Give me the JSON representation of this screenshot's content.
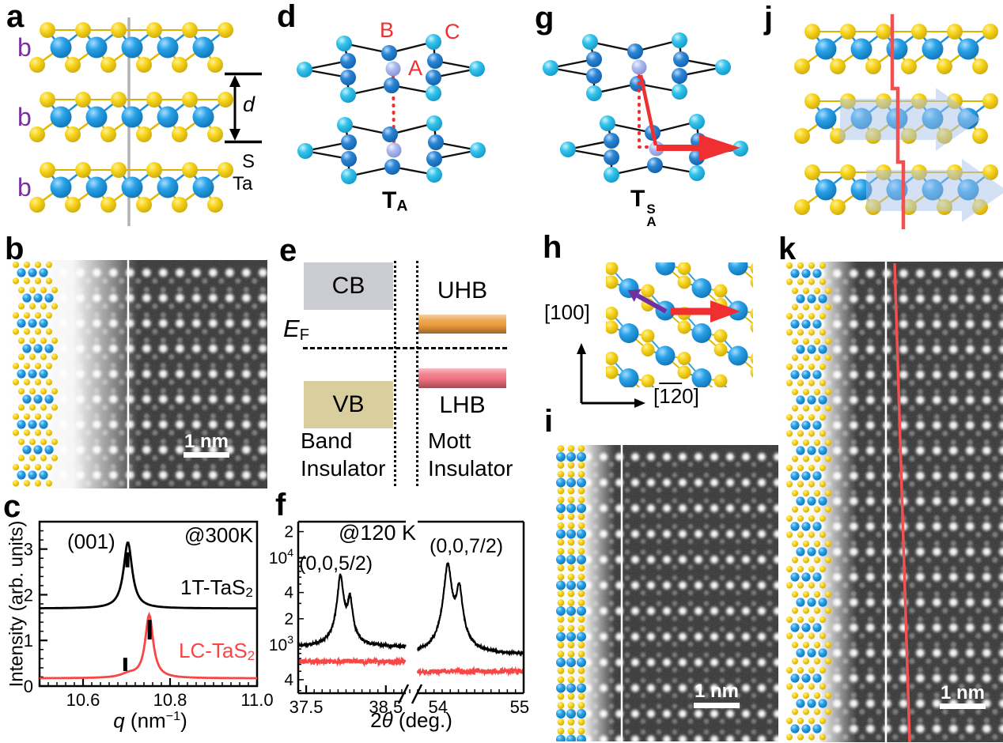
{
  "figure": {
    "panels": {
      "a": {
        "label": "a",
        "layer_labels": [
          "b",
          "b",
          "b"
        ],
        "spacing_label": "d",
        "legend": {
          "s": "S",
          "ta": "Ta"
        }
      },
      "b": {
        "label": "b",
        "scale_bar": "1 nm"
      },
      "c": {
        "label": "c"
      },
      "d": {
        "label": "d",
        "sites": {
          "a": "A",
          "b": "B",
          "c": "C"
        },
        "caption": {
          "base": "T",
          "sub": "A"
        }
      },
      "e": {
        "label": "e",
        "bands": {
          "cb": "CB",
          "vb": "VB",
          "uhb": "UHB",
          "lhb": "LHB"
        },
        "fermi": {
          "base": "E",
          "sub": "F"
        },
        "left_title": [
          "Band",
          "Insulator"
        ],
        "right_title": [
          "Mott",
          "Insulator"
        ],
        "colors": {
          "cb": "#cbcbd2",
          "vb": "#d9cf9e",
          "uhb": "#eb9b3c",
          "lhb": "#f0707f"
        }
      },
      "f": {
        "label": "f"
      },
      "g": {
        "label": "g",
        "caption": {
          "base": "T",
          "sub": "A",
          "sup": "S"
        }
      },
      "h": {
        "label": "h",
        "axis_vertical": "[100]",
        "axis_horizontal": {
          "open": "[",
          "overline": "12",
          "rest": "0]"
        }
      },
      "i": {
        "label": "i",
        "scale_bar": "1 nm"
      },
      "j": {
        "label": "j"
      },
      "k": {
        "label": "k",
        "scale_bar": "1 nm"
      }
    },
    "atom_colors": {
      "sulfur": "#f7d21e",
      "tantalum": "#1b9de0",
      "cluster_outer": "#35c4ec",
      "cluster_inner": "#2b86d4",
      "cluster_center": "#aebdf0",
      "layer_label": "#7b2f9e",
      "highlight_red": "#f03030",
      "arrow_purple": "#7030a0",
      "shift_arrow_fill": "#a9c3ec",
      "zigzag_red": "#f25050",
      "divider_gray": "#b3b3b3"
    }
  },
  "chart_data": [
    {
      "id": "panel-c",
      "type": "line",
      "temperature_label": "@300K",
      "peak_label": "(001)",
      "xlabel": {
        "var": "q",
        "unit_prefix": " (nm",
        "sup": "−1",
        "suffix": ")"
      },
      "ylabel": "Intensity (arb. units)",
      "xlim": [
        10.5,
        11.0
      ],
      "ylim": [
        0,
        3.6
      ],
      "xticks": [
        10.6,
        10.8,
        11.0
      ],
      "xminor_step": 0.02,
      "yticks": [
        0,
        1,
        2,
        3
      ],
      "yminor_step": 0.2,
      "grid": false,
      "series": [
        {
          "label": {
            "base": "1T-TaS",
            "sub": "2"
          },
          "color": "#000000",
          "baseline": 1.7,
          "peaks": [
            {
              "center": 10.703,
              "amplitude": 1.45,
              "hwhm": 0.012
            }
          ],
          "bragg_markers": [
            {
              "x": 10.702,
              "y0": 2.6,
              "y1": 2.93
            }
          ]
        },
        {
          "label": {
            "base": "LC-TaS",
            "sub": "2"
          },
          "color": "#f84545",
          "baseline": 0.17,
          "peaks": [
            {
              "center": 10.752,
              "amplitude": 1.38,
              "hwhm": 0.011
            },
            {
              "center": 10.705,
              "amplitude": 0.08,
              "hwhm": 0.022
            }
          ],
          "bragg_markers": [
            {
              "x": 10.697,
              "y0": 0.33,
              "y1": 0.62
            },
            {
              "x": 10.753,
              "y0": 1.02,
              "y1": 1.45
            }
          ]
        }
      ]
    },
    {
      "id": "panel-f",
      "type": "line",
      "yscale": "log",
      "temperature_label": "@120 K",
      "peak_labels": [
        "(0,0,5/2)",
        "(0,0,7/2)"
      ],
      "xlabel": {
        "prefix": "2",
        "var": "θ",
        "suffix": " (deg.)"
      },
      "ylim": [
        280,
        26000
      ],
      "ytick_labels": [
        {
          "value": 20000,
          "text": "2"
        },
        {
          "value": 10000,
          "text": "10",
          "sup": "4"
        },
        {
          "value": 4000,
          "text": "4"
        },
        {
          "value": 2000,
          "text": "2"
        },
        {
          "value": 1000,
          "text": "10",
          "sup": "3"
        },
        {
          "value": 400,
          "text": "4"
        }
      ],
      "segments": [
        {
          "xlim": [
            37.4,
            38.75
          ],
          "xticks": [
            37.5,
            38.5
          ],
          "xminor_step": 0.1
        },
        {
          "xlim": [
            53.75,
            55.05
          ],
          "xticks": [
            54,
            55
          ],
          "xminor_step": 0.1
        }
      ],
      "series": [
        {
          "color": "#000000",
          "baseline": [
            950,
            780
          ],
          "noise": 0.035,
          "peaks": [
            [
              {
                "center": 37.93,
                "amplitude": 5000,
                "hwhm": 0.035
              },
              {
                "center": 38.05,
                "amplitude": 2300,
                "hwhm": 0.03
              },
              {
                "center": 37.96,
                "amplitude": 300,
                "hwhm": 0.12
              }
            ],
            [
              {
                "center": 54.12,
                "amplitude": 7500,
                "hwhm": 0.04
              },
              {
                "center": 54.26,
                "amplitude": 3600,
                "hwhm": 0.035
              },
              {
                "center": 54.18,
                "amplitude": 350,
                "hwhm": 0.12
              }
            ]
          ]
        },
        {
          "color": "#f84545",
          "baseline": [
            650,
            500
          ],
          "noise": 0.07,
          "peaks": [
            [],
            []
          ]
        }
      ]
    }
  ]
}
